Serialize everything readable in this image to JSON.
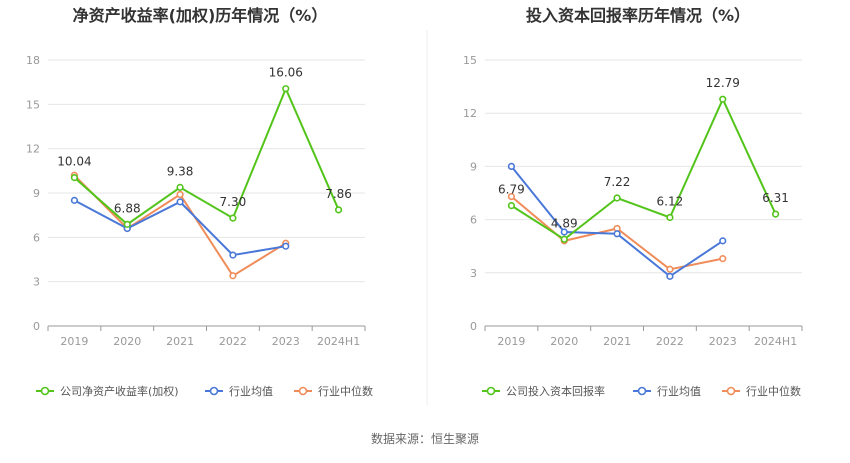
{
  "source": "数据来源：恒生聚源",
  "colors": {
    "company": "#52c41a",
    "avg": "#4a78d8",
    "median": "#f08c5a",
    "grid": "#e6e6e6",
    "axis": "#999999",
    "text": "#333333"
  },
  "chart_data": [
    {
      "type": "line",
      "title": "净资产收益率(加权)历年情况（%）",
      "categories": [
        "2019",
        "2020",
        "2021",
        "2022",
        "2023",
        "2024H1"
      ],
      "ylim": [
        0,
        18
      ],
      "yticks": [
        0,
        3,
        6,
        9,
        12,
        15,
        18
      ],
      "grid": true,
      "legend_position": "bottom-left",
      "series": [
        {
          "name": "公司净资产收益率(加权)",
          "key": "company",
          "values": [
            10.04,
            6.88,
            9.38,
            7.3,
            16.06,
            7.86
          ],
          "labels": [
            "10.04",
            "6.88",
            "9.38",
            "7.30",
            "16.06",
            "7.86"
          ]
        },
        {
          "name": "行业均值",
          "key": "avg",
          "values": [
            8.5,
            6.6,
            8.4,
            4.8,
            5.4,
            null
          ]
        },
        {
          "name": "行业中位数",
          "key": "median",
          "values": [
            10.2,
            6.6,
            8.9,
            3.4,
            5.6,
            null
          ]
        }
      ]
    },
    {
      "type": "line",
      "title": "投入资本回报率历年情况（%）",
      "categories": [
        "2019",
        "2020",
        "2021",
        "2022",
        "2023",
        "2024H1"
      ],
      "ylim": [
        0,
        15
      ],
      "yticks": [
        0,
        3,
        6,
        9,
        12,
        15
      ],
      "grid": true,
      "legend_position": "bottom-left",
      "series": [
        {
          "name": "公司投入资本回报率",
          "key": "company",
          "values": [
            6.79,
            4.89,
            7.22,
            6.12,
            12.79,
            6.31
          ],
          "labels": [
            "6.79",
            "4.89",
            "7.22",
            "6.12",
            "12.79",
            "6.31"
          ]
        },
        {
          "name": "行业均值",
          "key": "avg",
          "values": [
            9.0,
            5.3,
            5.2,
            2.8,
            4.8,
            null
          ]
        },
        {
          "name": "行业中位数",
          "key": "median",
          "values": [
            7.3,
            4.8,
            5.5,
            3.2,
            3.8,
            null
          ]
        }
      ]
    }
  ]
}
